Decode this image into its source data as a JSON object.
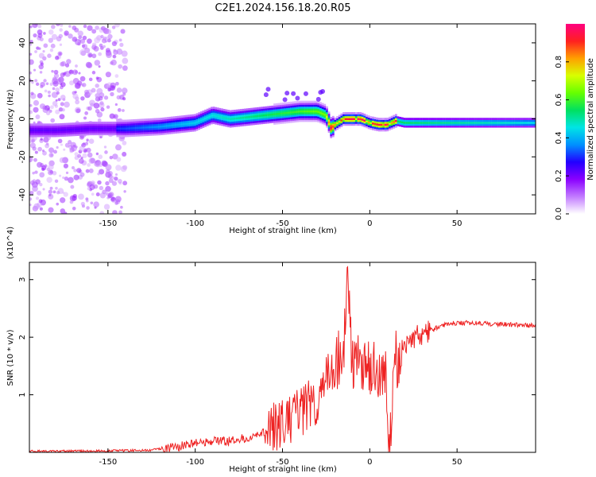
{
  "figure_title": "C2E1.2024.156.18.20.R05",
  "chart_data": [
    {
      "type": "heatmap",
      "xlabel": "Height of straight line (km)",
      "ylabel": "Frequency (Hz)",
      "xlim": [
        -195,
        95
      ],
      "ylim": [
        -50,
        50
      ],
      "x_ticks": [
        -150,
        -100,
        -50,
        0,
        50
      ],
      "y_ticks": [
        -40,
        -20,
        0,
        20,
        40
      ],
      "grid": false,
      "colorbar": {
        "label": "Normalized spectral amplitude",
        "range": [
          0,
          1
        ],
        "ticks": [
          "0.0",
          "0.2",
          "0.4",
          "0.6",
          "0.8"
        ],
        "colors": [
          "#ffffff",
          "#c27bff",
          "#8a00ff",
          "#2200ff",
          "#0090ff",
          "#00e5e5",
          "#00e060",
          "#66ff00",
          "#d8ff00",
          "#ffa000",
          "#ff2020",
          "#ff0080"
        ]
      },
      "ridge": {
        "x": [
          -195,
          -180,
          -160,
          -150,
          -140,
          -120,
          -100,
          -90,
          -80,
          -70,
          -60,
          -50,
          -40,
          -30,
          -25,
          -22,
          -20,
          -15,
          -10,
          -5,
          0,
          5,
          10,
          15,
          20,
          30,
          50,
          70,
          95
        ],
        "y": [
          -6,
          -6,
          -5,
          -5,
          -5,
          -4,
          -2,
          2,
          0,
          1,
          2,
          3,
          4,
          4,
          2,
          -5,
          -3,
          0,
          0,
          0,
          -2,
          -3,
          -3,
          -1,
          -2,
          -2,
          -2,
          -2,
          -2
        ]
      }
    },
    {
      "type": "line",
      "xlabel": "Height of straight line (km)",
      "ylabel": "SNR (10 * v/v)",
      "y_multiplier": "(x10^4)",
      "xlim": [
        -195,
        95
      ],
      "ylim": [
        0,
        3.3
      ],
      "x_ticks": [
        -150,
        -100,
        -50,
        0,
        50
      ],
      "y_ticks": [
        1,
        2,
        3
      ],
      "grid": false,
      "series": [
        {
          "color": "#ee2222",
          "x": [
            -195,
            -170,
            -140,
            -125,
            -110,
            -100,
            -90,
            -80,
            -70,
            -60,
            -50,
            -40,
            -30,
            -25,
            -20,
            -15,
            -13,
            -10,
            -5,
            0,
            5,
            10,
            11,
            15,
            20,
            25,
            30,
            35,
            40,
            50,
            60,
            70,
            80,
            95
          ],
          "y": [
            0.02,
            0.02,
            0.03,
            0.04,
            0.1,
            0.15,
            0.2,
            0.2,
            0.25,
            0.35,
            0.5,
            0.7,
            0.9,
            1.2,
            1.6,
            1.7,
            3.2,
            1.6,
            1.6,
            1.5,
            1.4,
            1.2,
            0.1,
            1.6,
            1.9,
            2.0,
            2.05,
            2.1,
            2.2,
            2.25,
            2.25,
            2.23,
            2.22,
            2.2
          ]
        }
      ]
    }
  ]
}
